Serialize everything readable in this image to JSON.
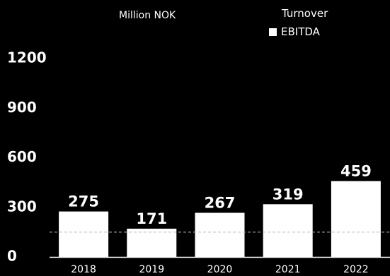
{
  "unit_label": "Million NOK",
  "legend": {
    "title": "Turnover",
    "items": [
      {
        "label": "EBITDA",
        "color": "#ffffff"
      }
    ]
  },
  "colors": {
    "background": "#000000",
    "bar": "#ffffff",
    "text": "#ffffff",
    "baseline": "#ffffff",
    "reference_line": "#bbbbbb"
  },
  "chart_data": {
    "type": "bar",
    "title": "",
    "xlabel": "",
    "ylabel": "Million NOK",
    "categories": [
      "2018",
      "2019",
      "2020",
      "2021",
      "2022"
    ],
    "series": [
      {
        "name": "EBITDA",
        "values": [
          275,
          171,
          267,
          319,
          459
        ]
      }
    ],
    "data_labels": [
      "275",
      "171",
      "267",
      "319",
      "459"
    ],
    "y_ticks": [
      0,
      300,
      600,
      900,
      1200
    ],
    "y_tick_labels": [
      "0",
      "300",
      "600",
      "900",
      "1200"
    ],
    "ylim": [
      0,
      1200
    ],
    "reference_line": {
      "value": 150,
      "style": "dashed"
    },
    "grid": false,
    "legend_position": "top-right"
  }
}
